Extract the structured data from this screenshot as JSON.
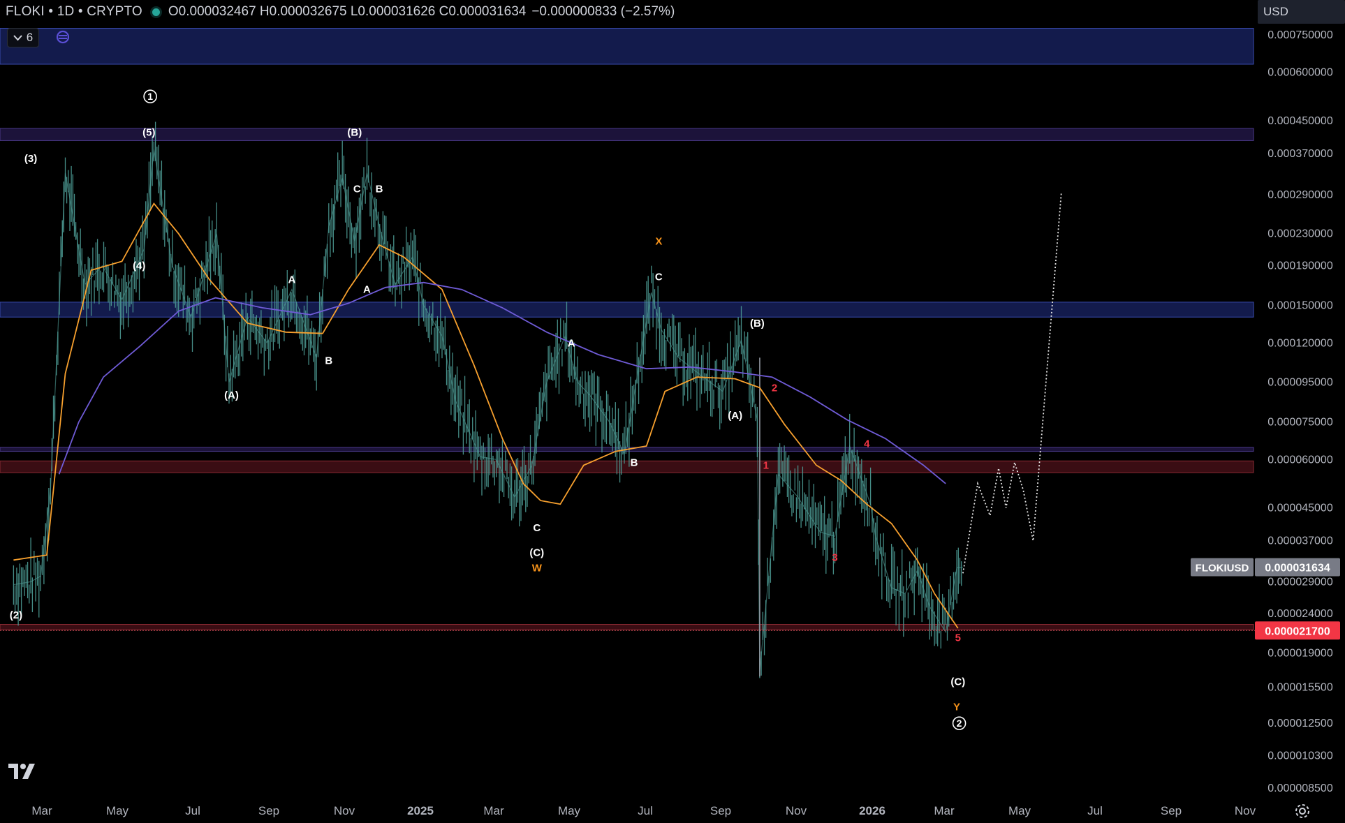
{
  "header": {
    "symbol": "FLOKI • 1D • CRYPTO",
    "ohlc": "O0.000032467 H0.000032675 L0.000031626 C0.000031634",
    "change": "−0.000000833 (−2.57%)"
  },
  "indicators_button": {
    "count": "6",
    "icon": "chevron-down-icon"
  },
  "currency_select": {
    "value": "USD"
  },
  "price_axis": {
    "labels": [
      "0.000750000",
      "0.000600000",
      "0.000450000",
      "0.000370000",
      "0.000290000",
      "0.000230000",
      "0.000190000",
      "0.000150000",
      "0.000120000",
      "0.000095000",
      "0.000075000",
      "0.000060000",
      "0.000045000",
      "0.000037000",
      "0.000029000",
      "0.000024000",
      "0.000019000",
      "0.000015500",
      "0.000012500",
      "0.000010300",
      "0.000008500"
    ],
    "symbol_tag": "FLOKIUSD",
    "last_price": "0.000031634",
    "alert_price": "0.000021700"
  },
  "time_axis": {
    "labels": [
      "Mar",
      "May",
      "Jul",
      "Sep",
      "Nov",
      "2025",
      "Mar",
      "May",
      "Jul",
      "Sep",
      "Nov",
      "2026",
      "Mar",
      "May",
      "Jul",
      "Sep",
      "Nov"
    ]
  },
  "colors": {
    "background": "#000000",
    "candle_stroke": "#4e9c96",
    "ma_fast": "#f7a02e",
    "ma_slow": "#6f5bd6",
    "zone_blue": "#1a2466",
    "zone_purple": "#261a4d",
    "zone_red": "#4d1219",
    "wave_white": "#ffffff",
    "wave_orange": "#f7931a",
    "wave_red": "#f23645",
    "last_price_bg": "#787b86",
    "alert_bg": "#f23645"
  },
  "chart_data": {
    "type": "line",
    "title": "",
    "series": [
      {
        "name": "",
        "x": [
          "2024-02-12",
          "2024-02-26",
          "2024-03-05",
          "2024-03-13",
          "2024-03-25",
          "2024-04-10",
          "2024-04-24",
          "2024-05-10",
          "2024-05-28",
          "2024-06-05",
          "2024-06-20",
          "2024-07-05",
          "2024-07-26",
          "2024-08-05",
          "2024-08-20",
          "2024-09-05",
          "2024-09-25",
          "2024-10-15",
          "2024-10-25",
          "2024-11-05",
          "2024-11-15",
          "2024-11-25",
          "2024-12-08",
          "2024-12-18",
          "2025-01-01",
          "2025-01-10",
          "2025-01-25",
          "2025-02-05",
          "2025-02-25",
          "2025-03-10",
          "2025-03-25",
          "2025-04-08",
          "2025-04-20",
          "2025-05-05",
          "2025-05-15",
          "2025-05-25",
          "2025-06-10",
          "2025-06-22",
          "2025-07-05",
          "2025-07-14",
          "2025-07-22",
          "2025-08-05",
          "2025-08-25",
          "2025-09-10",
          "2025-09-25",
          "2025-10-08",
          "2025-10-10",
          "2025-10-25",
          "2025-11-10",
          "2025-11-28",
          "2025-12-10",
          "2025-12-22",
          "2026-01-08",
          "2026-01-12",
          "2026-01-25",
          "2026-02-05",
          "2026-02-15",
          "2026-02-25",
          "2026-03-10",
          "2026-03-19",
          "2026-03-24"
        ],
        "values": [
          2.85e-05,
          2.9e-05,
          3e-05,
          5e-05,
          0.00033,
          0.00017,
          0.00019,
          0.000155,
          0.00021,
          0.00038,
          0.00019,
          0.00014,
          0.00023,
          9.5e-05,
          0.00014,
          0.00012,
          0.000165,
          0.00011,
          0.00024,
          0.00032,
          0.00022,
          0.00033,
          0.00022,
          0.00017,
          0.0002,
          0.00015,
          0.000125,
          8.5e-05,
          6.1e-05,
          6e-05,
          4.8e-05,
          5.8e-05,
          9.5e-05,
          0.000125,
          9.5e-05,
          8.8e-05,
          7.5e-05,
          6.2e-05,
          0.00011,
          0.000162,
          0.00013,
          0.00011,
          9.8e-05,
          9e-05,
          0.000122,
          7.6e-05,
          1.7e-05,
          5.5e-05,
          4.8e-05,
          3.9e-05,
          3.8e-05,
          6.5e-05,
          4.6e-05,
          3.8e-05,
          2.8e-05,
          2.7e-05,
          3.1e-05,
          2.5e-05,
          2.15e-05,
          3.15e-05,
          3.1634e-05
        ]
      },
      {
        "name": "",
        "x": [
          "2024-02-12",
          "2024-03-10",
          "2024-03-25",
          "2024-04-15",
          "2024-05-10",
          "2024-06-05",
          "2024-06-25",
          "2024-07-20",
          "2024-08-20",
          "2024-09-20",
          "2024-10-20",
          "2024-11-10",
          "2024-12-05",
          "2024-12-25",
          "2025-01-25",
          "2025-02-20",
          "2025-03-15",
          "2025-04-01",
          "2025-04-15",
          "2025-05-01",
          "2025-05-20",
          "2025-06-15",
          "2025-07-10",
          "2025-07-25",
          "2025-08-20",
          "2025-09-20",
          "2025-10-10",
          "2025-10-30",
          "2025-11-25",
          "2025-12-15",
          "2026-01-05",
          "2026-01-25",
          "2026-02-15",
          "2026-03-01",
          "2026-03-20"
        ],
        "values": [
          3.3e-05,
          3.4e-05,
          0.0001,
          0.000185,
          0.000195,
          0.000275,
          0.00023,
          0.000175,
          0.000135,
          0.000128,
          0.000127,
          0.000165,
          0.000215,
          0.0002,
          0.000165,
          0.000105,
          6.8e-05,
          5.2e-05,
          4.7e-05,
          4.6e-05,
          5.8e-05,
          6.3e-05,
          6.5e-05,
          9e-05,
          9.8e-05,
          9.7e-05,
          9.2e-05,
          7.4e-05,
          5.8e-05,
          5.3e-05,
          4.6e-05,
          4.1e-05,
          3.3e-05,
          2.7e-05,
          2.2e-05
        ]
      },
      {
        "name": "",
        "x": [
          "2024-03-20",
          "2024-04-05",
          "2024-04-25",
          "2024-05-25",
          "2024-06-25",
          "2024-07-25",
          "2024-09-01",
          "2024-10-10",
          "2024-11-10",
          "2024-12-10",
          "2025-01-10",
          "2025-02-10",
          "2025-03-15",
          "2025-04-20",
          "2025-06-01",
          "2025-07-10",
          "2025-08-15",
          "2025-09-20",
          "2025-10-20",
          "2025-11-20",
          "2025-12-20",
          "2026-01-20",
          "2026-02-20",
          "2026-03-10"
        ],
        "values": [
          5.5e-05,
          7.5e-05,
          9.8e-05,
          0.000118,
          0.000145,
          0.000157,
          0.000148,
          0.000142,
          0.000152,
          0.000167,
          0.000172,
          0.000165,
          0.000148,
          0.000128,
          0.000112,
          0.000103,
          0.000104,
          0.000101,
          9.8e-05,
          8.7e-05,
          7.6e-05,
          6.8e-05,
          5.8e-05,
          5.2e-05
        ]
      }
    ],
    "projection": {
      "x": [
        "2026-03-24",
        "2026-04-05",
        "2026-04-15",
        "2026-04-22",
        "2026-04-28",
        "2026-05-05",
        "2026-05-12",
        "2026-05-20",
        "2026-06-12"
      ],
      "values": [
        3.05e-05,
        5.2e-05,
        4.3e-05,
        5.7e-05,
        4.5e-05,
        5.9e-05,
        5e-05,
        3.7e-05,
        0.000295
      ]
    },
    "zones": [
      {
        "from": 0.00063,
        "to": 0.00078,
        "color": "blue"
      },
      {
        "from": 0.0004,
        "to": 0.00043,
        "color": "purple"
      },
      {
        "from": 0.00014,
        "to": 0.000153,
        "color": "blue"
      },
      {
        "from": 6.3e-05,
        "to": 6.45e-05,
        "color": "purple"
      },
      {
        "from": 5.55e-05,
        "to": 5.95e-05,
        "color": "red"
      },
      {
        "from": 2.18e-05,
        "to": 2.25e-05,
        "color": "red"
      }
    ],
    "wave_labels": [
      {
        "text": "(2)",
        "x": "2024-02-14",
        "y": 2.38e-05,
        "color": "white"
      },
      {
        "text": "(3)",
        "x": "2024-02-26",
        "y": 0.00036,
        "color": "white"
      },
      {
        "text": "(4)",
        "x": "2024-05-24",
        "y": 0.00019,
        "color": "white"
      },
      {
        "text": "(5)",
        "x": "2024-06-01",
        "y": 0.00042,
        "color": "white"
      },
      {
        "text": "1",
        "x": "2024-06-02",
        "y": 0.00052,
        "color": "white",
        "circled": true
      },
      {
        "text": "(A)",
        "x": "2024-08-07",
        "y": 8.8e-05,
        "color": "white"
      },
      {
        "text": "A",
        "x": "2024-09-25",
        "y": 0.000175,
        "color": "white"
      },
      {
        "text": "B",
        "x": "2024-10-25",
        "y": 0.000108,
        "color": "white"
      },
      {
        "text": "(B)",
        "x": "2024-11-15",
        "y": 0.00042,
        "color": "white"
      },
      {
        "text": "C",
        "x": "2024-11-17",
        "y": 0.0003,
        "color": "white"
      },
      {
        "text": "B",
        "x": "2024-12-05",
        "y": 0.0003,
        "color": "white"
      },
      {
        "text": "A",
        "x": "2024-11-25",
        "y": 0.000165,
        "color": "white"
      },
      {
        "text": "C",
        "x": "2025-04-12",
        "y": 4e-05,
        "color": "white"
      },
      {
        "text": "(C)",
        "x": "2025-04-12",
        "y": 3.45e-05,
        "color": "white"
      },
      {
        "text": "W",
        "x": "2025-04-12",
        "y": 3.15e-05,
        "color": "orange"
      },
      {
        "text": "A",
        "x": "2025-05-10",
        "y": 0.00012,
        "color": "white"
      },
      {
        "text": "B",
        "x": "2025-06-30",
        "y": 5.9e-05,
        "color": "white"
      },
      {
        "text": "X",
        "x": "2025-07-20",
        "y": 0.00022,
        "color": "orange"
      },
      {
        "text": "C",
        "x": "2025-07-20",
        "y": 0.000178,
        "color": "white"
      },
      {
        "text": "(A)",
        "x": "2025-09-20",
        "y": 7.8e-05,
        "color": "white"
      },
      {
        "text": "(B)",
        "x": "2025-10-08",
        "y": 0.000135,
        "color": "white"
      },
      {
        "text": "1",
        "x": "2025-10-15",
        "y": 5.8e-05,
        "color": "red"
      },
      {
        "text": "2",
        "x": "2025-10-22",
        "y": 9.2e-05,
        "color": "red"
      },
      {
        "text": "3",
        "x": "2025-12-10",
        "y": 3.35e-05,
        "color": "red"
      },
      {
        "text": "4",
        "x": "2026-01-05",
        "y": 6.6e-05,
        "color": "red"
      },
      {
        "text": "5",
        "x": "2026-03-20",
        "y": 2.08e-05,
        "color": "red"
      },
      {
        "text": "(C)",
        "x": "2026-03-20",
        "y": 1.6e-05,
        "color": "white"
      },
      {
        "text": "Y",
        "x": "2026-03-19",
        "y": 1.38e-05,
        "color": "orange"
      },
      {
        "text": "2",
        "x": "2026-03-21",
        "y": 1.25e-05,
        "color": "white",
        "circled": true
      }
    ],
    "ylabel": "",
    "xlabel": "",
    "ylim": [
      8e-06,
      0.00082
    ],
    "y_scale": "log",
    "xlim": [
      "2024-02-01",
      "2026-11-15"
    ],
    "grid": false,
    "legend": "none"
  }
}
